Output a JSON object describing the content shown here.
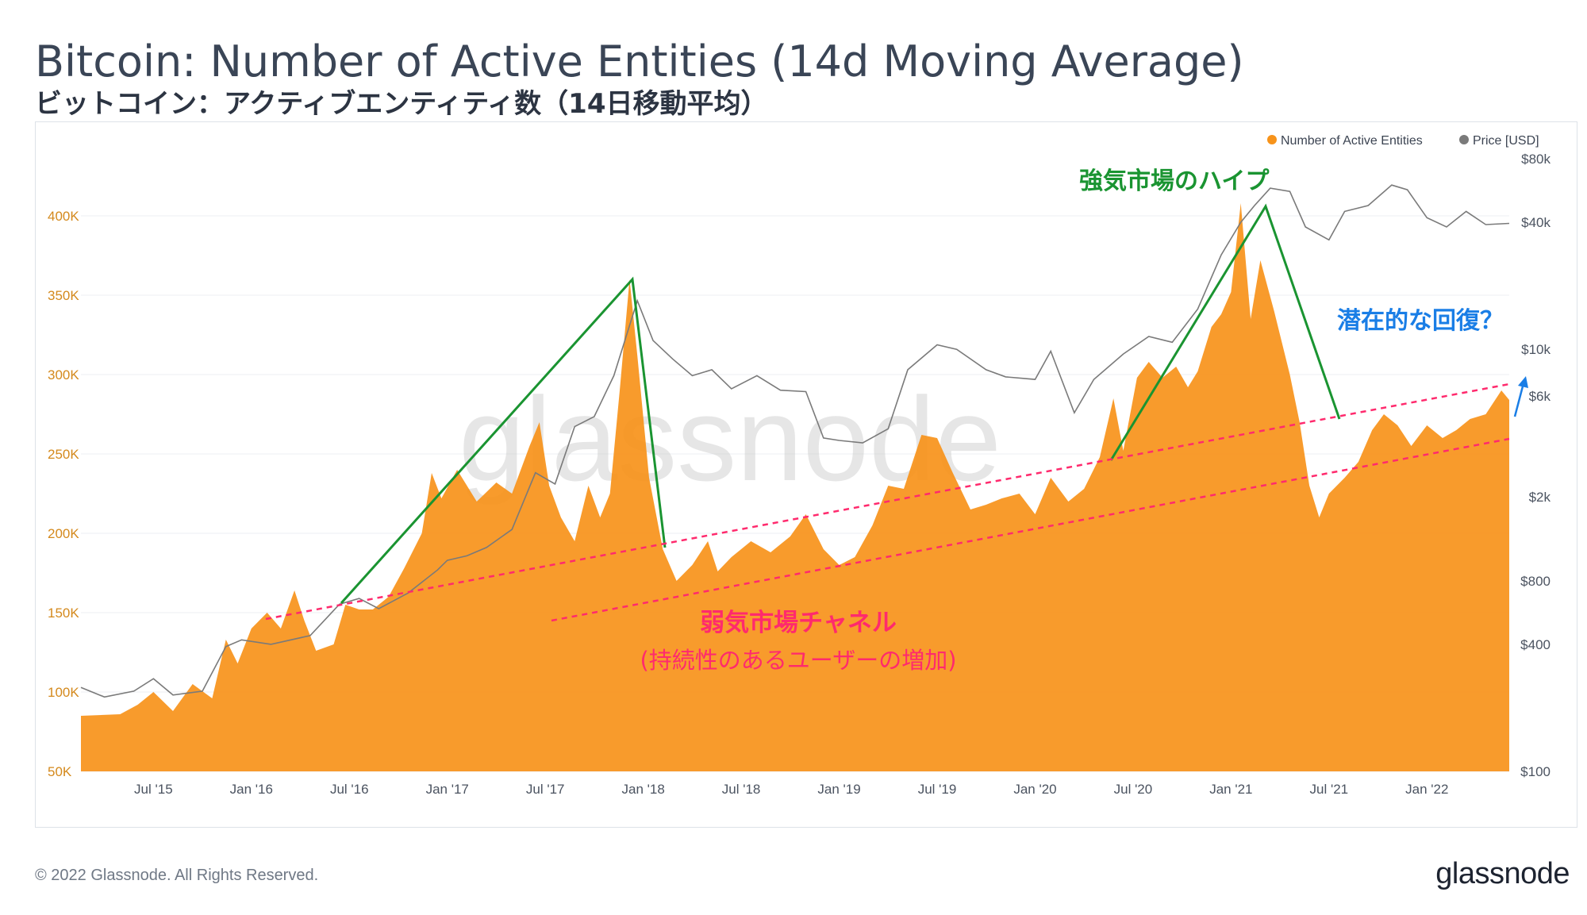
{
  "title": "Bitcoin: Number of Active Entities (14d Moving Average)",
  "subtitle": "ビットコイン：アクティブエンティティ数（14日移動平均）",
  "footer": "© 2022 Glassnode. All Rights Reserved.",
  "brand": "glassnode",
  "watermark": "glassnode",
  "colors": {
    "entities": "#f7931a",
    "price": "#7a7a7a",
    "bull": "#1a9431",
    "bear": "#ff2a6d",
    "recovery": "#1a7ee6",
    "left_axis": "#d4891c"
  },
  "chart_data": {
    "type": "area",
    "legend": [
      {
        "label": "Number of Active Entities",
        "color": "#f7931a"
      },
      {
        "label": "Price [USD]",
        "color": "#7a7a7a"
      }
    ],
    "x_start": 2015.13,
    "x_end": 2022.42,
    "x_ticks": [
      {
        "label": "Jul '15",
        "x": 2015.5
      },
      {
        "label": "Jan '16",
        "x": 2016.0
      },
      {
        "label": "Jul '16",
        "x": 2016.5
      },
      {
        "label": "Jan '17",
        "x": 2017.0
      },
      {
        "label": "Jul '17",
        "x": 2017.5
      },
      {
        "label": "Jan '18",
        "x": 2018.0
      },
      {
        "label": "Jul '18",
        "x": 2018.5
      },
      {
        "label": "Jan '19",
        "x": 2019.0
      },
      {
        "label": "Jul '19",
        "x": 2019.5
      },
      {
        "label": "Jan '20",
        "x": 2020.0
      },
      {
        "label": "Jul '20",
        "x": 2020.5
      },
      {
        "label": "Jan '21",
        "x": 2021.0
      },
      {
        "label": "Jul '21",
        "x": 2021.5
      },
      {
        "label": "Jan '22",
        "x": 2022.0
      }
    ],
    "left_axis": {
      "label": "Number of Active Entities",
      "ylim": [
        50000,
        420000
      ],
      "ticks": [
        {
          "label": "50K",
          "value": 50000
        },
        {
          "label": "100K",
          "value": 100000
        },
        {
          "label": "150K",
          "value": 150000
        },
        {
          "label": "200K",
          "value": 200000
        },
        {
          "label": "250K",
          "value": 250000
        },
        {
          "label": "300K",
          "value": 300000
        },
        {
          "label": "350K",
          "value": 350000
        },
        {
          "label": "400K",
          "value": 400000
        }
      ]
    },
    "right_axis": {
      "label": "Price [USD]",
      "scale": "log",
      "ylim": [
        100,
        80000
      ],
      "ticks": [
        {
          "label": "$100",
          "value": 100
        },
        {
          "label": "$400",
          "value": 400
        },
        {
          "label": "$800",
          "value": 800
        },
        {
          "label": "$2k",
          "value": 2000
        },
        {
          "label": "$6k",
          "value": 6000
        },
        {
          "label": "$10k",
          "value": 10000
        },
        {
          "label": "$40k",
          "value": 40000
        },
        {
          "label": "$80k",
          "value": 80000
        }
      ]
    },
    "series": [
      {
        "name": "Number of Active Entities",
        "points": [
          [
            2015.13,
            85000
          ],
          [
            2015.33,
            86000
          ],
          [
            2015.42,
            92000
          ],
          [
            2015.5,
            100000
          ],
          [
            2015.6,
            88000
          ],
          [
            2015.7,
            105000
          ],
          [
            2015.8,
            96000
          ],
          [
            2015.87,
            133000
          ],
          [
            2015.93,
            118000
          ],
          [
            2016.0,
            140000
          ],
          [
            2016.08,
            150000
          ],
          [
            2016.15,
            140000
          ],
          [
            2016.22,
            164000
          ],
          [
            2016.27,
            145000
          ],
          [
            2016.33,
            126000
          ],
          [
            2016.42,
            130000
          ],
          [
            2016.48,
            155000
          ],
          [
            2016.55,
            152000
          ],
          [
            2016.62,
            152000
          ],
          [
            2016.7,
            160000
          ],
          [
            2016.78,
            178000
          ],
          [
            2016.87,
            200000
          ],
          [
            2016.92,
            238000
          ],
          [
            2016.97,
            222000
          ],
          [
            2017.05,
            240000
          ],
          [
            2017.15,
            220000
          ],
          [
            2017.25,
            232000
          ],
          [
            2017.33,
            225000
          ],
          [
            2017.42,
            255000
          ],
          [
            2017.47,
            270000
          ],
          [
            2017.52,
            230000
          ],
          [
            2017.58,
            210000
          ],
          [
            2017.65,
            195000
          ],
          [
            2017.72,
            230000
          ],
          [
            2017.78,
            210000
          ],
          [
            2017.83,
            225000
          ],
          [
            2017.88,
            290000
          ],
          [
            2017.93,
            360000
          ],
          [
            2017.97,
            312000
          ],
          [
            2018.03,
            235000
          ],
          [
            2018.1,
            190000
          ],
          [
            2018.17,
            170000
          ],
          [
            2018.25,
            180000
          ],
          [
            2018.33,
            195000
          ],
          [
            2018.38,
            176000
          ],
          [
            2018.45,
            185000
          ],
          [
            2018.55,
            195000
          ],
          [
            2018.65,
            188000
          ],
          [
            2018.75,
            198000
          ],
          [
            2018.83,
            212000
          ],
          [
            2018.92,
            190000
          ],
          [
            2019.0,
            180000
          ],
          [
            2019.08,
            185000
          ],
          [
            2019.17,
            205000
          ],
          [
            2019.25,
            230000
          ],
          [
            2019.33,
            228000
          ],
          [
            2019.42,
            262000
          ],
          [
            2019.5,
            260000
          ],
          [
            2019.58,
            238000
          ],
          [
            2019.67,
            215000
          ],
          [
            2019.75,
            218000
          ],
          [
            2019.83,
            222000
          ],
          [
            2019.92,
            225000
          ],
          [
            2020.0,
            212000
          ],
          [
            2020.08,
            235000
          ],
          [
            2020.17,
            220000
          ],
          [
            2020.25,
            228000
          ],
          [
            2020.33,
            248000
          ],
          [
            2020.4,
            285000
          ],
          [
            2020.45,
            252000
          ],
          [
            2020.52,
            298000
          ],
          [
            2020.58,
            308000
          ],
          [
            2020.65,
            298000
          ],
          [
            2020.72,
            305000
          ],
          [
            2020.78,
            292000
          ],
          [
            2020.83,
            302000
          ],
          [
            2020.9,
            330000
          ],
          [
            2020.95,
            338000
          ],
          [
            2021.0,
            352000
          ],
          [
            2021.05,
            408000
          ],
          [
            2021.1,
            335000
          ],
          [
            2021.15,
            372000
          ],
          [
            2021.22,
            340000
          ],
          [
            2021.3,
            300000
          ],
          [
            2021.35,
            270000
          ],
          [
            2021.4,
            230000
          ],
          [
            2021.45,
            210000
          ],
          [
            2021.5,
            225000
          ],
          [
            2021.58,
            235000
          ],
          [
            2021.65,
            245000
          ],
          [
            2021.72,
            265000
          ],
          [
            2021.78,
            275000
          ],
          [
            2021.85,
            268000
          ],
          [
            2021.92,
            255000
          ],
          [
            2022.0,
            268000
          ],
          [
            2022.08,
            260000
          ],
          [
            2022.15,
            265000
          ],
          [
            2022.22,
            272000
          ],
          [
            2022.3,
            275000
          ],
          [
            2022.38,
            290000
          ],
          [
            2022.42,
            284000
          ]
        ]
      },
      {
        "name": "Price [USD]",
        "points": [
          [
            2015.13,
            250
          ],
          [
            2015.25,
            225
          ],
          [
            2015.4,
            240
          ],
          [
            2015.5,
            275
          ],
          [
            2015.6,
            230
          ],
          [
            2015.75,
            240
          ],
          [
            2015.87,
            390
          ],
          [
            2015.95,
            420
          ],
          [
            2016.1,
            400
          ],
          [
            2016.3,
            440
          ],
          [
            2016.45,
            620
          ],
          [
            2016.55,
            660
          ],
          [
            2016.65,
            590
          ],
          [
            2016.8,
            700
          ],
          [
            2016.95,
            900
          ],
          [
            2017.0,
            1000
          ],
          [
            2017.1,
            1050
          ],
          [
            2017.2,
            1150
          ],
          [
            2017.33,
            1400
          ],
          [
            2017.45,
            2600
          ],
          [
            2017.55,
            2300
          ],
          [
            2017.65,
            4300
          ],
          [
            2017.75,
            4800
          ],
          [
            2017.85,
            7500
          ],
          [
            2017.97,
            17000
          ],
          [
            2018.05,
            11000
          ],
          [
            2018.15,
            9000
          ],
          [
            2018.25,
            7500
          ],
          [
            2018.35,
            8000
          ],
          [
            2018.45,
            6500
          ],
          [
            2018.58,
            7500
          ],
          [
            2018.7,
            6400
          ],
          [
            2018.83,
            6300
          ],
          [
            2018.92,
            3800
          ],
          [
            2019.0,
            3700
          ],
          [
            2019.12,
            3600
          ],
          [
            2019.25,
            4200
          ],
          [
            2019.35,
            8000
          ],
          [
            2019.5,
            10500
          ],
          [
            2019.6,
            10000
          ],
          [
            2019.75,
            8000
          ],
          [
            2019.85,
            7400
          ],
          [
            2020.0,
            7200
          ],
          [
            2020.08,
            9800
          ],
          [
            2020.2,
            5000
          ],
          [
            2020.3,
            7200
          ],
          [
            2020.45,
            9500
          ],
          [
            2020.58,
            11500
          ],
          [
            2020.7,
            10800
          ],
          [
            2020.83,
            15500
          ],
          [
            2020.95,
            28000
          ],
          [
            2021.05,
            40000
          ],
          [
            2021.12,
            48000
          ],
          [
            2021.2,
            58000
          ],
          [
            2021.3,
            56000
          ],
          [
            2021.38,
            38000
          ],
          [
            2021.5,
            33000
          ],
          [
            2021.58,
            45000
          ],
          [
            2021.7,
            48000
          ],
          [
            2021.82,
            60000
          ],
          [
            2021.9,
            57000
          ],
          [
            2022.0,
            42000
          ],
          [
            2022.1,
            38000
          ],
          [
            2022.2,
            45000
          ],
          [
            2022.3,
            39000
          ],
          [
            2022.42,
            39500
          ]
        ]
      }
    ],
    "annotations": [
      {
        "text": "強気市場のハイプ",
        "color": "bull"
      },
      {
        "text": "潜在的な回復？",
        "color": "recovery"
      },
      {
        "text": "弱気市場チャネル",
        "color": "bear"
      },
      {
        "text": "(持続性のあるユーザーの増加)",
        "color": "bear"
      }
    ]
  }
}
